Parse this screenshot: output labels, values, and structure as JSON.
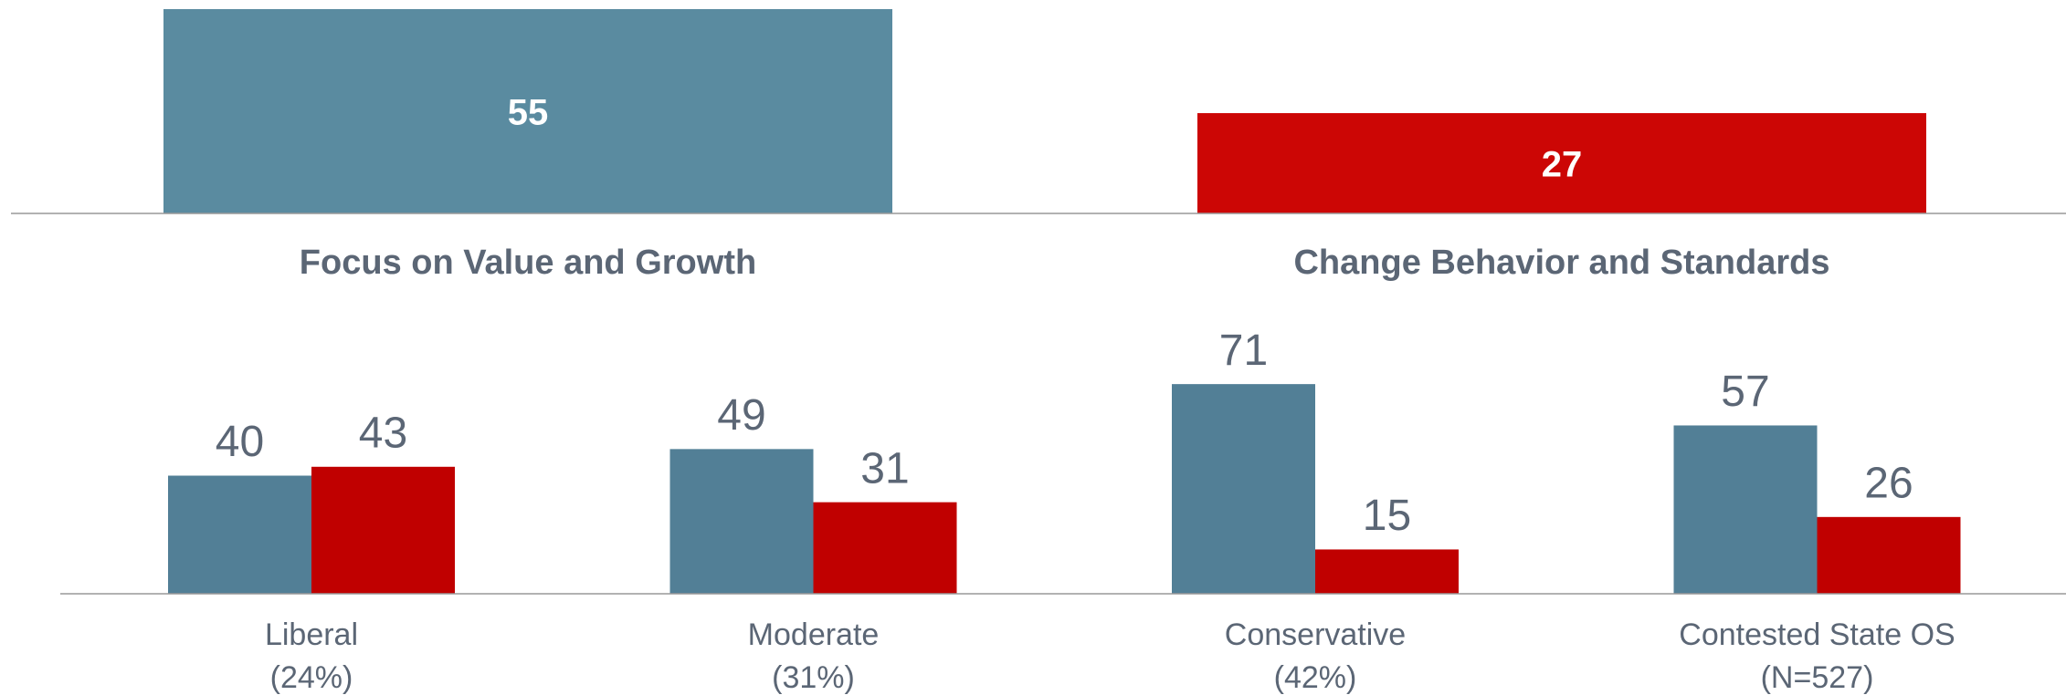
{
  "chart_data": [
    {
      "type": "bar",
      "categories": [
        "Focus on Value and Growth",
        "Change Behavior and Standards"
      ],
      "values": [
        55,
        27
      ],
      "colors": [
        "#5a8ba0",
        "#cc0605"
      ],
      "ylim": [
        0,
        55
      ]
    },
    {
      "type": "grouped_bar",
      "categories": [
        [
          "Liberal",
          "(24%)"
        ],
        [
          "Moderate",
          "(31%)"
        ],
        [
          "Conservative",
          "(42%)"
        ],
        [
          "Contested State OS",
          "(N=527)"
        ]
      ],
      "series": [
        {
          "color": "#527f96",
          "values": [
            40,
            49,
            71,
            57
          ]
        },
        {
          "color": "#c00000",
          "values": [
            43,
            31,
            15,
            26
          ]
        }
      ],
      "ylim": [
        0,
        80
      ]
    }
  ]
}
